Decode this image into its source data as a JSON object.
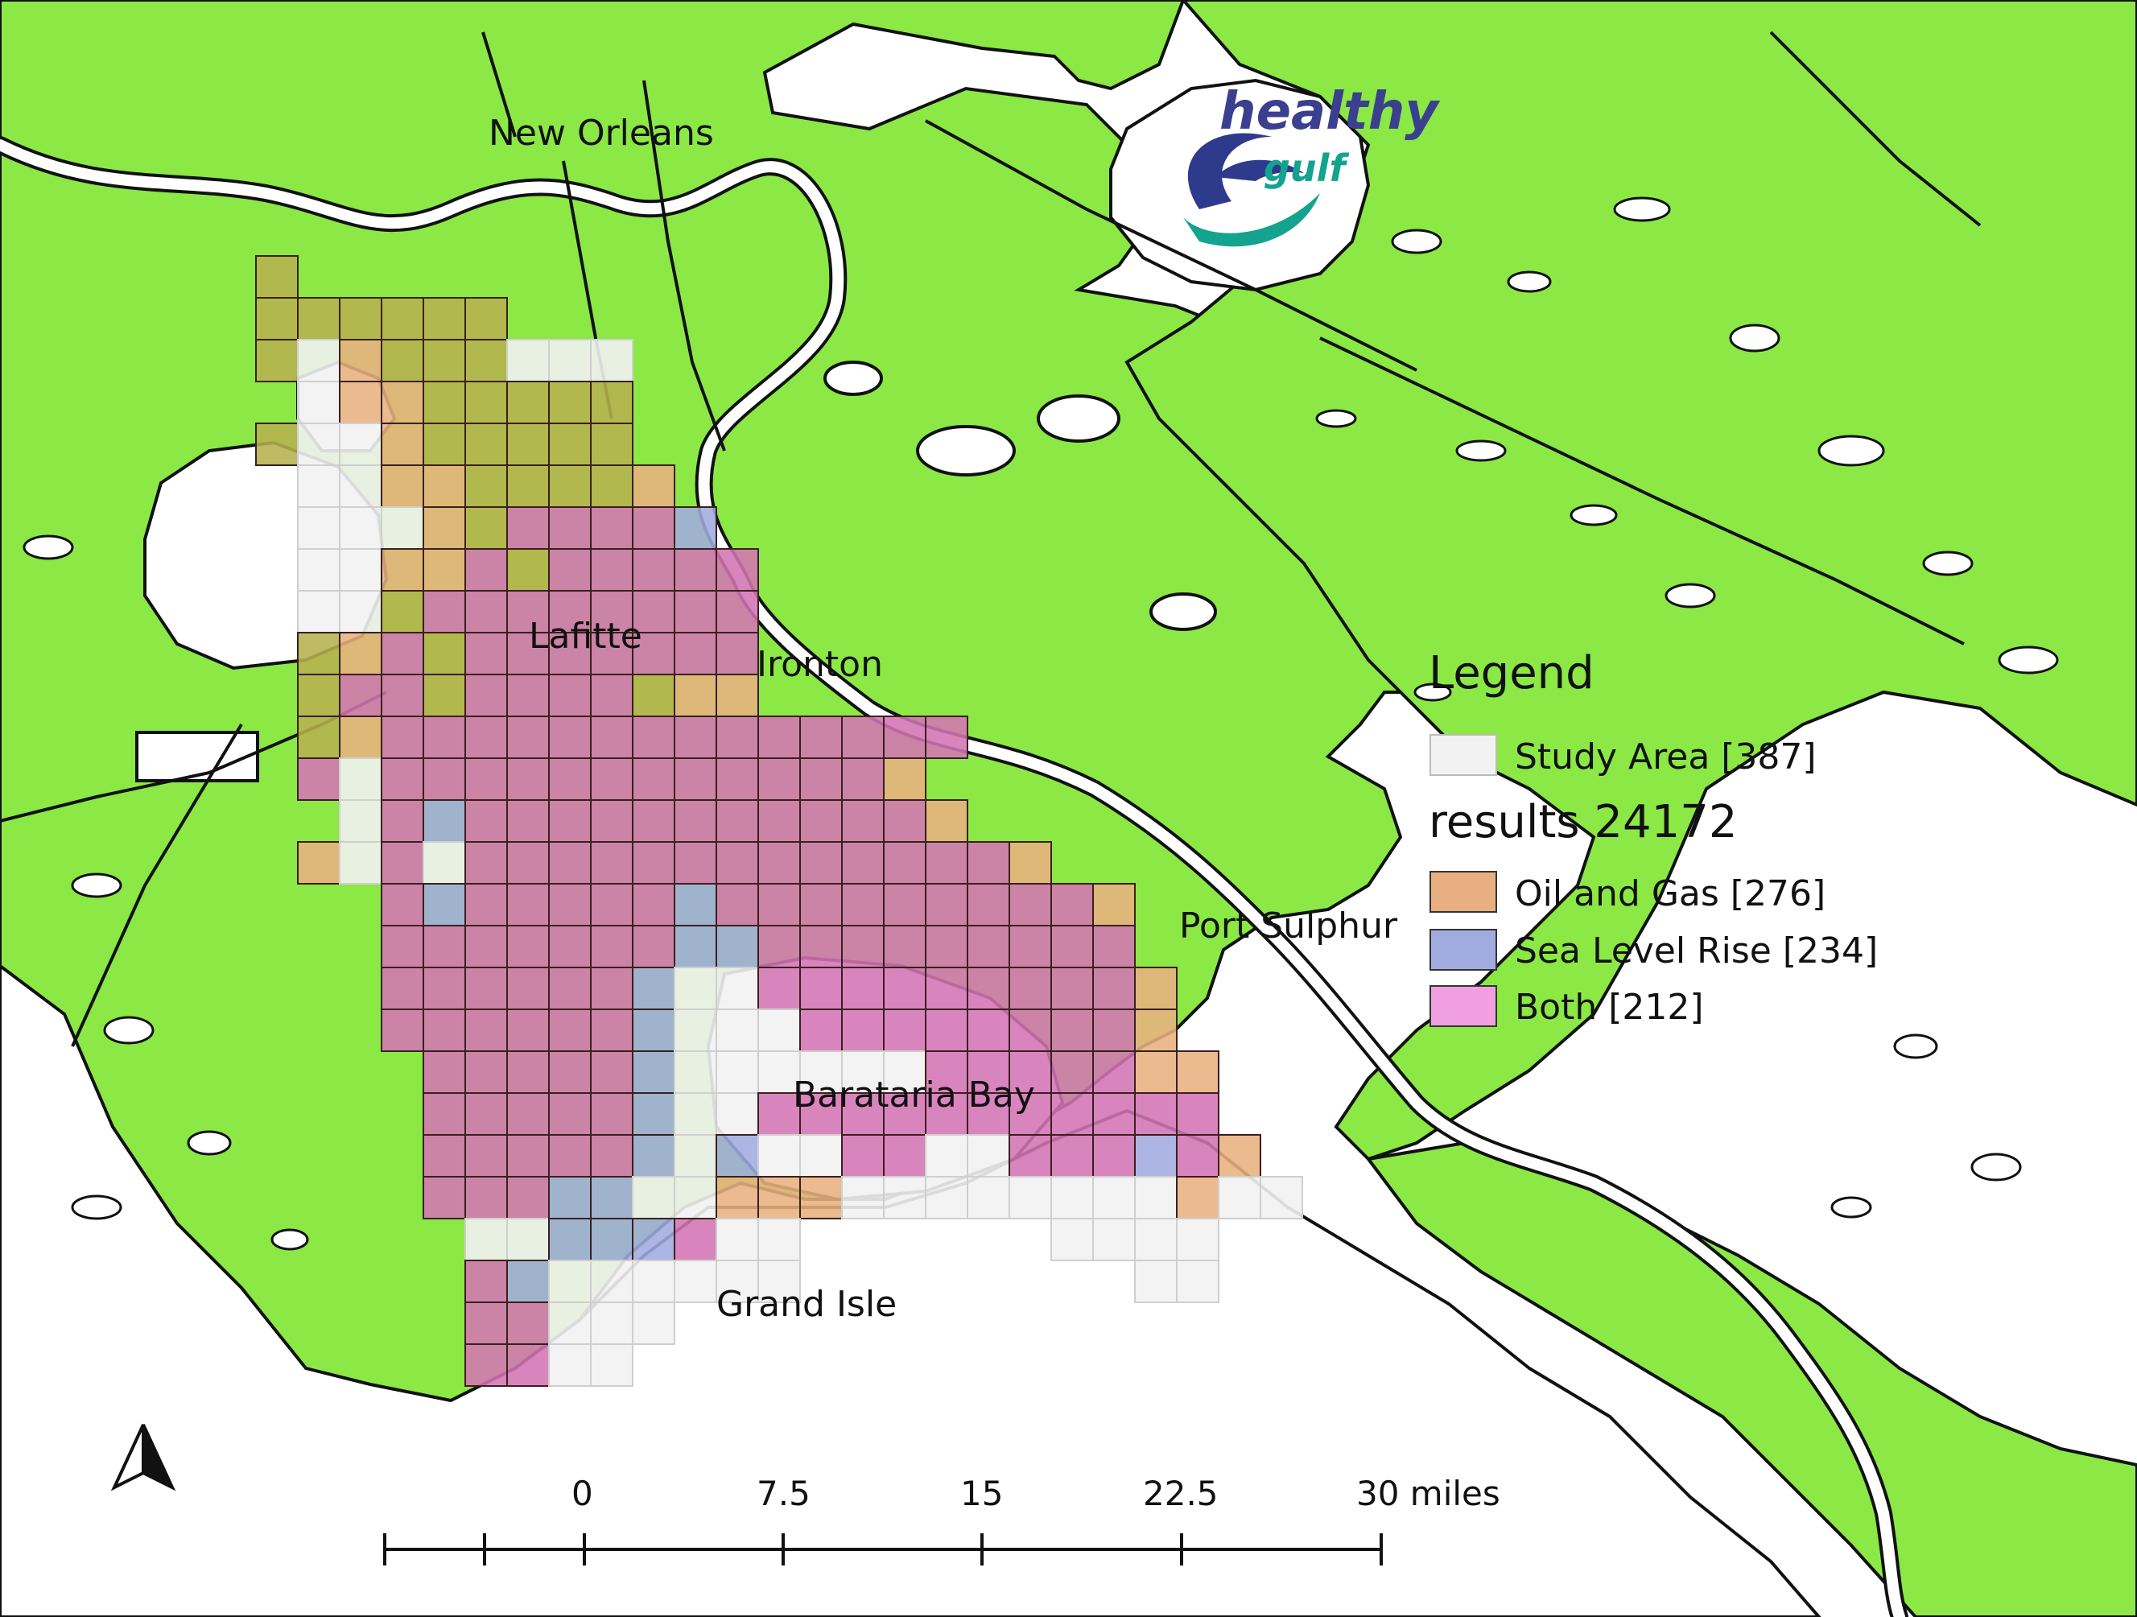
{
  "colors": {
    "land": "#8be845",
    "water": "#ffffff",
    "study_area": "#f2f2f2",
    "oil_and_gas": "#e8b080",
    "sea_level_rise": "#a2abe0",
    "both": "#d474b4",
    "oil_over_land": "#b6b04e",
    "grid_line": "#3a1f1f"
  },
  "places": {
    "new_orleans": "New Orleans",
    "lafitte": "Lafitte",
    "ironton": "Ironton",
    "port_sulphur": "Port Sulphur",
    "barataria_bay": "Barataria Bay",
    "grand_isle": "Grand Isle"
  },
  "logo": {
    "line1": "healthy",
    "line2": "gulf"
  },
  "legend": {
    "title": "Legend",
    "study_area": "Study Area [387]",
    "results_title": "results 24172",
    "oil_and_gas": "Oil and Gas [276]",
    "sea_level_rise": "Sea Level Rise [234]",
    "both": "Both [212]"
  },
  "scale_bar": {
    "labels": [
      "0",
      "7.5",
      "15",
      "22.5",
      "30 miles"
    ]
  },
  "north_arrow": {
    "icon": "north-arrow-icon"
  }
}
